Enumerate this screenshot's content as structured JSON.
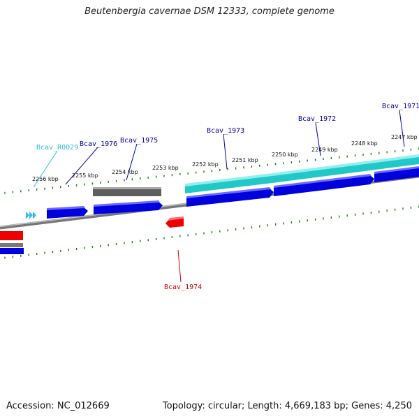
{
  "title": "Beutenbergia cavernae DSM 12333, complete genome",
  "footer": {
    "accession": "Accession: NC_012669",
    "summary": "Topology: circular; Length: 4,669,183 bp; Genes: 4,250"
  },
  "colors": {
    "backbone": "#8c8c8c",
    "tick": "#1a7a1a",
    "cds_forward": "#0000dd",
    "cds_reverse": "#ff0000",
    "rna": "#22c8c8",
    "pseudo": "#666666",
    "label_rna": "#33bbdd",
    "label_forward": "#0000aa",
    "label_reverse": "#cc0000"
  },
  "scale_labels": [
    "2256 kbp",
    "2255 kbp",
    "2254 kbp",
    "2253 kbp",
    "2252 kbp",
    "2251 kbp",
    "2250 kbp",
    "2249 kbp",
    "2248 kbp",
    "2247 kbp"
  ],
  "gene_labels": [
    {
      "text": "Bcav_R0029",
      "color": "label_rna"
    },
    {
      "text": "Bcav_1976",
      "color": "label_forward"
    },
    {
      "text": "Bcav_1975",
      "color": "label_forward"
    },
    {
      "text": "Bcav_1973",
      "color": "label_forward"
    },
    {
      "text": "Bcav_1972",
      "color": "label_forward"
    },
    {
      "text": "Bcav_1971",
      "color": "label_forward"
    },
    {
      "text": "Bcav_1974",
      "color": "label_reverse"
    }
  ]
}
